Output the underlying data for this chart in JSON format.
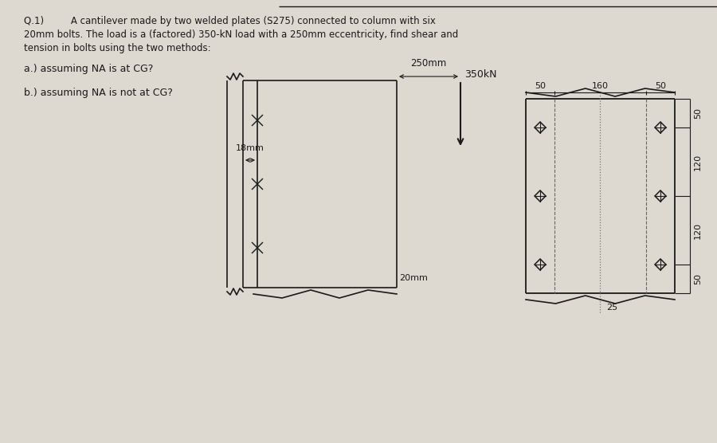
{
  "bg_color": "#ddd8d0",
  "line_color": "#1a1a1a",
  "text_color": "#1a1a1a",
  "title_line1": "Q.1)         A cantilever made by two welded plates (S275) connected to column with six",
  "title_line2": "20mm bolts. The load is a (factored) 350-kN load with a 250mm eccentricity, find shear and",
  "title_line3": "tension in bolts using the two methods:",
  "question_a": "a.) assuming NA is at CG?",
  "question_b": "b.) assuming NA is not at CG?",
  "label_350kN": "350kN",
  "label_250mm": "250mm",
  "label_18mm": "18mm",
  "label_20mm": "20mm",
  "label_25": "25",
  "label_50_top_left": "50",
  "label_160_top": "160",
  "label_50_top_right": "50",
  "label_50_r1": "50",
  "label_120_r2": "120",
  "label_120_r3": "120",
  "label_50_r4": "50"
}
